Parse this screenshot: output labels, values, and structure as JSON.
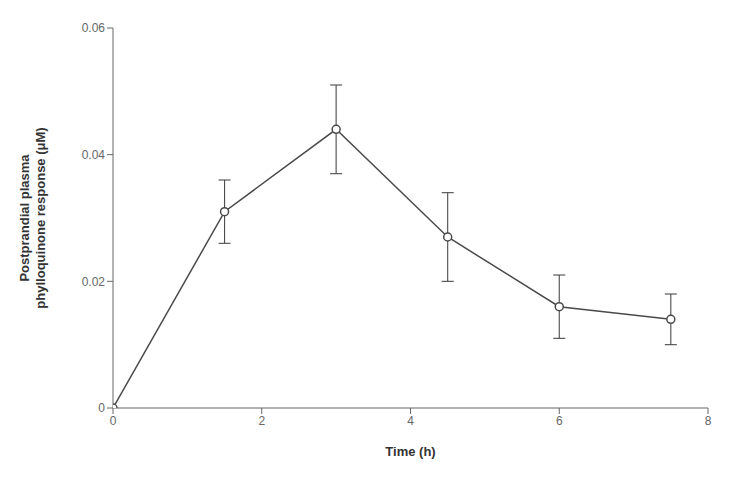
{
  "chart_data": {
    "type": "line",
    "x": [
      0,
      1.5,
      3,
      4.5,
      6,
      7.5
    ],
    "values": [
      0.0,
      0.031,
      0.044,
      0.027,
      0.016,
      0.014
    ],
    "yerr": [
      0.0,
      0.005,
      0.007,
      0.007,
      0.005,
      0.004
    ],
    "xlabel": "Time (h)",
    "ylabel": "Postprandial plasma\nphylloquinone response (μM)",
    "xlim": [
      0,
      8
    ],
    "ylim": [
      0,
      0.06
    ],
    "xticks": [
      0,
      2,
      4,
      6,
      8
    ],
    "yticks": [
      0,
      0.02,
      0.04,
      0.06
    ],
    "color": "#4a4a4a",
    "marker": "o",
    "grid": false
  }
}
